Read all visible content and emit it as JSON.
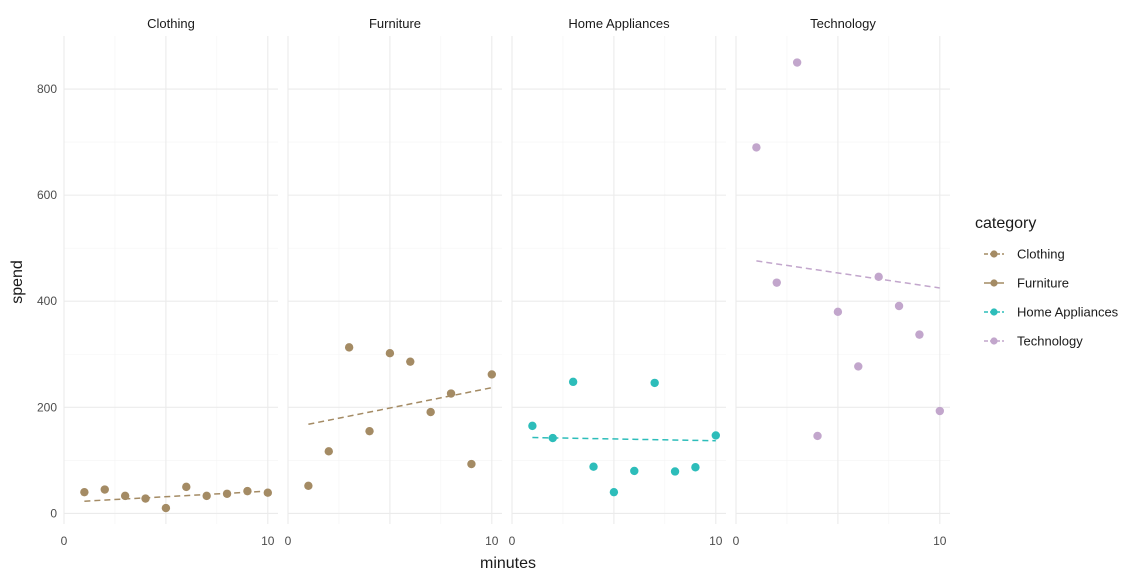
{
  "chart_data": {
    "type": "scatter",
    "facet_by": "category",
    "xlabel": "minutes",
    "ylabel": "spend",
    "xlim": [
      0,
      10.5
    ],
    "ylim": [
      -20,
      900
    ],
    "x_ticks": [
      0,
      10
    ],
    "y_ticks": [
      0,
      200,
      400,
      600,
      800
    ],
    "grid": true,
    "trend_lines": "dashed linear fit per panel",
    "legend": {
      "title": "category",
      "position": "right",
      "entries": [
        "Clothing",
        "Furniture",
        "Home Appliances",
        "Technology"
      ]
    },
    "panels": [
      {
        "name": "Clothing",
        "color": "#A48B64",
        "points": [
          [
            1,
            40
          ],
          [
            2,
            45
          ],
          [
            3,
            33
          ],
          [
            4,
            28
          ],
          [
            5,
            10
          ],
          [
            6,
            50
          ],
          [
            7,
            33
          ],
          [
            8,
            37
          ],
          [
            9,
            42
          ],
          [
            10,
            39
          ]
        ],
        "trend": [
          [
            1,
            23
          ],
          [
            10,
            42
          ]
        ]
      },
      {
        "name": "Furniture",
        "color": "#A48B64",
        "points": [
          [
            1,
            52
          ],
          [
            2,
            117
          ],
          [
            3,
            313
          ],
          [
            4,
            155
          ],
          [
            5,
            302
          ],
          [
            6,
            286
          ],
          [
            7,
            191
          ],
          [
            8,
            226
          ],
          [
            9,
            93
          ],
          [
            10,
            262
          ]
        ],
        "trend": [
          [
            1,
            168
          ],
          [
            10,
            237
          ]
        ]
      },
      {
        "name": "Home Appliances",
        "color": "#2DBDBA",
        "points": [
          [
            1,
            165
          ],
          [
            2,
            142
          ],
          [
            3,
            248
          ],
          [
            4,
            88
          ],
          [
            5,
            40
          ],
          [
            6,
            80
          ],
          [
            7,
            246
          ],
          [
            8,
            79
          ],
          [
            9,
            87
          ],
          [
            10,
            147
          ]
        ],
        "trend": [
          [
            1,
            143
          ],
          [
            10,
            137
          ]
        ]
      },
      {
        "name": "Technology",
        "color": "#C2A6CC",
        "points": [
          [
            1,
            690
          ],
          [
            2,
            435
          ],
          [
            3,
            850
          ],
          [
            4,
            146
          ],
          [
            5,
            380
          ],
          [
            6,
            277
          ],
          [
            7,
            446
          ],
          [
            8,
            391
          ],
          [
            9,
            337
          ],
          [
            10,
            193
          ]
        ],
        "trend": [
          [
            1,
            476
          ],
          [
            10,
            425
          ]
        ]
      }
    ]
  }
}
